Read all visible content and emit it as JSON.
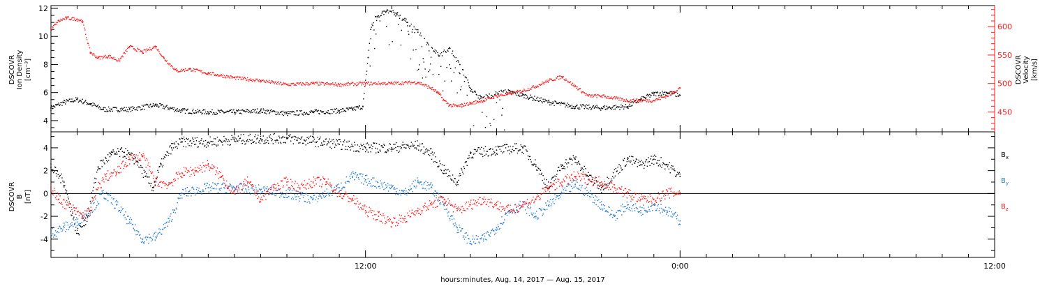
{
  "chart_data": [
    {
      "type": "scatter",
      "panel": "plasma",
      "ylabel_lines": [
        "DSCOVR",
        "Ion Density",
        "[cm⁻³]"
      ],
      "y2label_lines": [
        "DSCOVR",
        "Velocity",
        "[km/s]"
      ],
      "ylim": [
        3.2,
        12.2
      ],
      "y2lim": [
        415,
        637
      ],
      "yticks": [
        4,
        6,
        8,
        10,
        12
      ],
      "y2ticks": [
        450,
        500,
        550,
        600
      ],
      "series": [
        {
          "color": "#000000",
          "axis": "left",
          "x": [
            0,
            0.5,
            1,
            1.5,
            2,
            3,
            4,
            5,
            6,
            7,
            8,
            9,
            10,
            11,
            11.5,
            11.9,
            12.1,
            12.2,
            12.4,
            12.8,
            13.2,
            13.6,
            14.0,
            14.4,
            14.8,
            15.2,
            15.6,
            16.0,
            16.4,
            16.8,
            17.2,
            17.6,
            18.0,
            19,
            20,
            21,
            22,
            22.5,
            23,
            23.5,
            24.0
          ],
          "y": [
            4.9,
            5.3,
            5.5,
            5.2,
            4.8,
            4.8,
            5.1,
            4.7,
            4.6,
            4.6,
            4.7,
            4.5,
            4.6,
            4.7,
            4.8,
            5.0,
            8.5,
            10.5,
            11.4,
            11.8,
            11.6,
            11.0,
            10.3,
            9.4,
            8.6,
            9.2,
            8.0,
            6.3,
            5.6,
            5.8,
            6.1,
            6.0,
            5.8,
            5.3,
            5.0,
            4.9,
            5.0,
            5.5,
            5.9,
            6.0,
            5.8
          ]
        },
        {
          "color": "#ff1a1a",
          "axis": "right",
          "x": [
            0,
            0.3,
            0.6,
            1.0,
            1.2,
            1.5,
            1.8,
            2.2,
            2.6,
            3.0,
            3.5,
            4.0,
            4.3,
            4.8,
            5.3,
            6,
            7,
            8,
            9,
            10,
            11,
            12,
            13,
            14,
            14.5,
            14.8,
            15.0,
            15.2,
            15.5,
            16,
            16.5,
            17,
            17.5,
            18,
            18.5,
            19,
            19.5,
            20,
            20.5,
            21,
            22,
            22.5,
            23,
            23.5,
            24.0
          ],
          "y": [
            595,
            610,
            615,
            613,
            610,
            555,
            545,
            548,
            540,
            565,
            555,
            565,
            545,
            522,
            525,
            518,
            510,
            505,
            498,
            500,
            498,
            500,
            500,
            502,
            492,
            482,
            470,
            462,
            460,
            465,
            470,
            478,
            482,
            487,
            495,
            505,
            512,
            495,
            478,
            478,
            470,
            470,
            470,
            478,
            492
          ]
        }
      ]
    },
    {
      "type": "scatter",
      "panel": "magnetic-field",
      "ylabel_lines": [
        "DSCOVR",
        "B",
        "[nT]"
      ],
      "ylim": [
        -5.6,
        5.4
      ],
      "yticks": [
        -4,
        -2,
        0,
        2,
        4
      ],
      "zero_line": true,
      "legend_position": "right",
      "legend": [
        {
          "label": "B",
          "sub": "x",
          "color": "#000000"
        },
        {
          "label": "B",
          "sub": "y",
          "color": "#1e78d2"
        },
        {
          "label": "B",
          "sub": "z",
          "color": "#ff1a1a"
        }
      ],
      "series": [
        {
          "name": "Bx",
          "color": "#000000",
          "x": [
            0,
            0.5,
            1.0,
            1.4,
            1.8,
            2.3,
            2.8,
            3.3,
            3.6,
            3.9,
            4.2,
            4.6,
            5,
            6,
            7,
            8,
            9,
            10,
            11,
            12,
            13,
            14,
            14.5,
            15.0,
            15.5,
            16.0,
            17,
            18,
            18.5,
            19.0,
            19.5,
            20.0,
            20.5,
            21.0,
            22.0,
            22.5,
            23.0,
            23.5,
            24.0
          ],
          "y": [
            2.3,
            1.0,
            -3.5,
            -2.0,
            2.3,
            3.4,
            3.6,
            2.8,
            1.5,
            0.5,
            2.5,
            4.0,
            4.5,
            4.5,
            4.7,
            4.8,
            4.8,
            4.6,
            4.3,
            4.0,
            4.0,
            4.2,
            3.5,
            2.0,
            1.0,
            3.5,
            3.8,
            4.0,
            2.5,
            0.5,
            2.5,
            3.0,
            1.5,
            0.5,
            3.0,
            2.5,
            3.0,
            2.5,
            1.5
          ]
        },
        {
          "name": "By",
          "color": "#1e78d2",
          "x": [
            0,
            0.5,
            1.0,
            1.5,
            2.0,
            2.5,
            3.0,
            3.5,
            4.0,
            4.5,
            5,
            6,
            7,
            8,
            9,
            10,
            11,
            11.5,
            12,
            13,
            13.5,
            14,
            14.5,
            15.0,
            15.5,
            16.0,
            16.5,
            17,
            17.5,
            18,
            18.5,
            19,
            19.5,
            20,
            20.5,
            21,
            21.5,
            22,
            22.5,
            23,
            23.5,
            24.0
          ],
          "y": [
            -3.5,
            -3.0,
            -2.5,
            -1.5,
            0.0,
            -1.0,
            -2.5,
            -4.0,
            -3.8,
            -2.5,
            0.0,
            0.5,
            0.5,
            0.3,
            0.0,
            -0.5,
            0.5,
            1.5,
            1.2,
            0.5,
            0.0,
            1.0,
            0.5,
            -1.0,
            -3.0,
            -4.2,
            -4.0,
            -3.0,
            -1.5,
            -1.0,
            -2.0,
            -1.0,
            0.0,
            0.8,
            0.0,
            -1.0,
            -2.0,
            -1.0,
            -1.5,
            -1.0,
            -1.5,
            -2.4
          ]
        },
        {
          "name": "Bz",
          "color": "#ff1a1a",
          "x": [
            0,
            0.3,
            0.6,
            0.9,
            1.2,
            1.5,
            1.8,
            2.1,
            2.5,
            3.0,
            3.5,
            4.0,
            4.5,
            5.0,
            5.5,
            6.0,
            6.5,
            7,
            7.5,
            8,
            8.5,
            9,
            9.5,
            10,
            10.5,
            11,
            11.5,
            12,
            12.5,
            13,
            13.5,
            14,
            14.5,
            15,
            15.5,
            16,
            16.5,
            17,
            17.5,
            18,
            18.5,
            19,
            19.5,
            20,
            20.5,
            21,
            21.5,
            22,
            22.5,
            23,
            23.5,
            24.0
          ],
          "y": [
            0.5,
            -0.5,
            -1.0,
            -1.5,
            -2.0,
            -1.5,
            0.5,
            1.5,
            1.8,
            3.0,
            3.3,
            1.0,
            0.8,
            1.8,
            2.0,
            2.5,
            1.5,
            0.0,
            1.0,
            -0.5,
            0.5,
            1.0,
            0.5,
            1.0,
            1.0,
            0.0,
            -0.5,
            -1.5,
            -2.0,
            -2.5,
            -2.2,
            -1.5,
            -1.0,
            -0.5,
            -1.5,
            -1.0,
            -0.5,
            -1.0,
            -1.5,
            -1.0,
            -0.5,
            0.5,
            1.0,
            1.5,
            1.2,
            1.0,
            0.5,
            0.0,
            -0.5,
            -0.5,
            0.0,
            0.1
          ]
        }
      ]
    }
  ],
  "x_axis": {
    "hours": 36,
    "tick_labels": [
      {
        "hour": 12,
        "label": "12:00"
      },
      {
        "hour": 24,
        "label": "0:00"
      },
      {
        "hour": 36,
        "label": "12:00"
      }
    ],
    "title": "hours:minutes, Aug. 14, 2017 — Aug. 15, 2017"
  }
}
